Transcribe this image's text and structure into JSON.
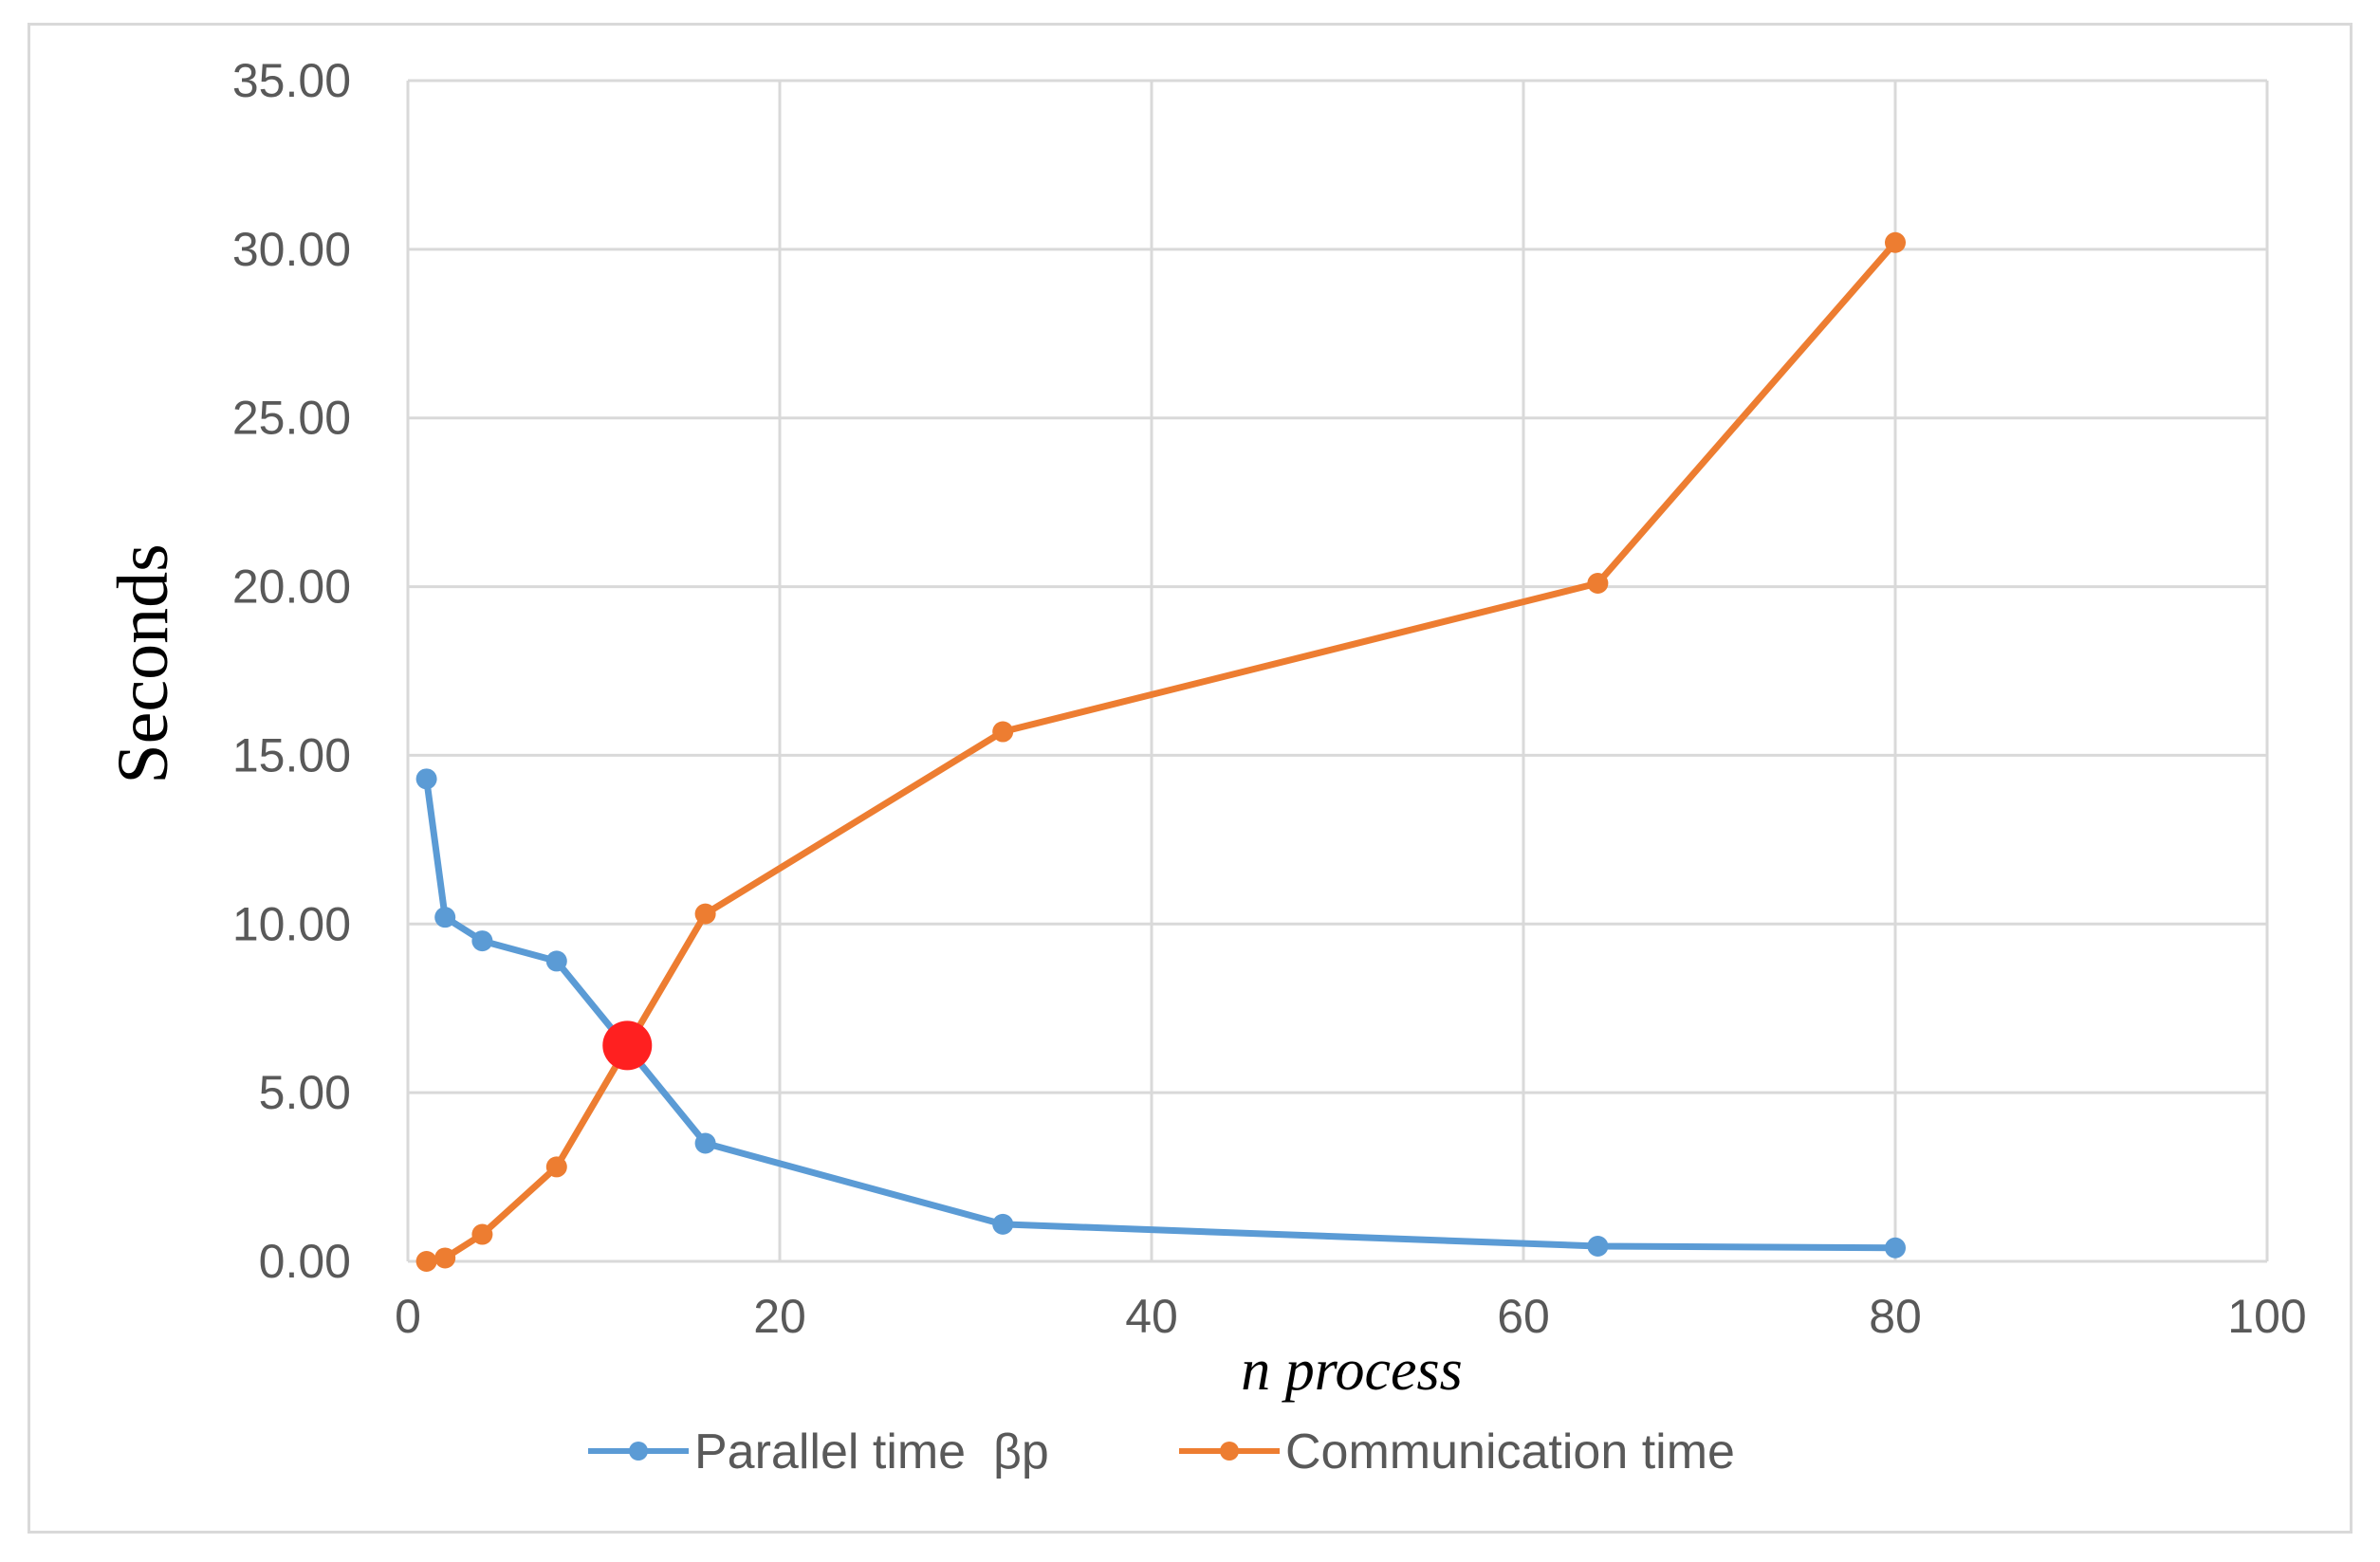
{
  "chart_data": {
    "type": "line",
    "title": "",
    "xlabel": "n process",
    "ylabel": "Seconds",
    "xlim": [
      0,
      100
    ],
    "ylim": [
      0,
      35
    ],
    "x_ticks": [
      "0",
      "20",
      "40",
      "60",
      "80",
      "100"
    ],
    "y_ticks": [
      "0.00",
      "5.00",
      "10.00",
      "15.00",
      "20.00",
      "25.00",
      "30.00",
      "35.00"
    ],
    "grid": true,
    "legend_position": "bottom",
    "series": [
      {
        "name": "Parallel time  βp",
        "color": "#5b9bd5",
        "x": [
          1,
          2,
          4,
          8,
          16,
          32,
          64,
          80
        ],
        "y": [
          14.3,
          10.2,
          9.5,
          8.9,
          3.5,
          1.1,
          0.45,
          0.4
        ]
      },
      {
        "name": "Communication time",
        "color": "#ed7d31",
        "x": [
          1,
          2,
          4,
          8,
          16,
          32,
          64,
          80
        ],
        "y": [
          0.0,
          0.1,
          0.8,
          2.8,
          10.3,
          15.7,
          20.1,
          30.2
        ]
      }
    ],
    "highlight_point": {
      "x": 11.8,
      "y": 6.4,
      "color": "#ff2020"
    }
  }
}
